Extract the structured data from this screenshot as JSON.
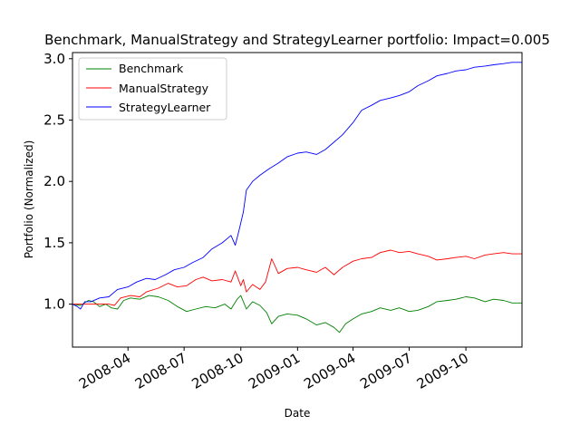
{
  "chart_data": {
    "type": "line",
    "title": "Benchmark, ManualStrategy and StrategyLearner portfolio: Impact=0.005",
    "xlabel": "Date",
    "ylabel": "Portfolio (Normalized)",
    "xlim": [
      "2008-01-02",
      "2009-12-31"
    ],
    "ylim": [
      0.65,
      3.05
    ],
    "yticks": [
      1.0,
      1.5,
      2.0,
      2.5,
      3.0
    ],
    "ytick_labels": [
      "1.0",
      "1.5",
      "2.0",
      "2.5",
      "3.0"
    ],
    "xticks": [
      "2008-04-01",
      "2008-07-01",
      "2008-10-01",
      "2009-01-01",
      "2009-04-01",
      "2009-07-01",
      "2009-10-01"
    ],
    "xtick_labels": [
      "2008-04",
      "2008-07",
      "2008-10",
      "2009-01",
      "2009-04",
      "2009-07",
      "2009-10"
    ],
    "grid": false,
    "legend_position": "top-left",
    "series": [
      {
        "name": "Benchmark",
        "color": "#008000",
        "points": [
          [
            "2008-01-02",
            1.0
          ],
          [
            "2008-01-15",
            0.99
          ],
          [
            "2008-01-28",
            1.03
          ],
          [
            "2008-02-05",
            1.02
          ],
          [
            "2008-02-15",
            0.98
          ],
          [
            "2008-02-25",
            1.0
          ],
          [
            "2008-03-05",
            0.97
          ],
          [
            "2008-03-15",
            0.96
          ],
          [
            "2008-03-25",
            1.03
          ],
          [
            "2008-04-05",
            1.05
          ],
          [
            "2008-04-20",
            1.04
          ],
          [
            "2008-05-05",
            1.07
          ],
          [
            "2008-05-20",
            1.06
          ],
          [
            "2008-06-05",
            1.03
          ],
          [
            "2008-06-20",
            0.98
          ],
          [
            "2008-07-05",
            0.94
          ],
          [
            "2008-07-20",
            0.96
          ],
          [
            "2008-08-05",
            0.98
          ],
          [
            "2008-08-20",
            0.97
          ],
          [
            "2008-09-05",
            1.0
          ],
          [
            "2008-09-15",
            0.96
          ],
          [
            "2008-09-25",
            1.04
          ],
          [
            "2008-10-01",
            1.07
          ],
          [
            "2008-10-10",
            0.96
          ],
          [
            "2008-10-20",
            1.02
          ],
          [
            "2008-11-01",
            0.99
          ],
          [
            "2008-11-12",
            0.93
          ],
          [
            "2008-11-20",
            0.84
          ],
          [
            "2008-12-01",
            0.9
          ],
          [
            "2008-12-15",
            0.92
          ],
          [
            "2009-01-01",
            0.91
          ],
          [
            "2009-01-15",
            0.88
          ],
          [
            "2009-02-01",
            0.83
          ],
          [
            "2009-02-15",
            0.85
          ],
          [
            "2009-03-01",
            0.81
          ],
          [
            "2009-03-10",
            0.77
          ],
          [
            "2009-03-20",
            0.84
          ],
          [
            "2009-04-01",
            0.88
          ],
          [
            "2009-04-15",
            0.92
          ],
          [
            "2009-05-01",
            0.94
          ],
          [
            "2009-05-15",
            0.97
          ],
          [
            "2009-06-01",
            0.95
          ],
          [
            "2009-06-15",
            0.97
          ],
          [
            "2009-07-01",
            0.94
          ],
          [
            "2009-07-15",
            0.95
          ],
          [
            "2009-08-01",
            0.98
          ],
          [
            "2009-08-15",
            1.02
          ],
          [
            "2009-09-01",
            1.03
          ],
          [
            "2009-09-15",
            1.04
          ],
          [
            "2009-10-01",
            1.06
          ],
          [
            "2009-10-15",
            1.05
          ],
          [
            "2009-11-01",
            1.02
          ],
          [
            "2009-11-15",
            1.04
          ],
          [
            "2009-12-01",
            1.03
          ],
          [
            "2009-12-15",
            1.01
          ],
          [
            "2009-12-31",
            1.01
          ]
        ]
      },
      {
        "name": "ManualStrategy",
        "color": "#ff0000",
        "points": [
          [
            "2008-01-02",
            1.0
          ],
          [
            "2008-02-01",
            1.0
          ],
          [
            "2008-03-01",
            1.0
          ],
          [
            "2008-03-10",
            0.99
          ],
          [
            "2008-03-20",
            1.05
          ],
          [
            "2008-04-05",
            1.07
          ],
          [
            "2008-04-20",
            1.06
          ],
          [
            "2008-05-01",
            1.1
          ],
          [
            "2008-05-20",
            1.13
          ],
          [
            "2008-06-05",
            1.17
          ],
          [
            "2008-06-20",
            1.14
          ],
          [
            "2008-07-05",
            1.15
          ],
          [
            "2008-07-20",
            1.2
          ],
          [
            "2008-08-01",
            1.22
          ],
          [
            "2008-08-15",
            1.19
          ],
          [
            "2008-09-01",
            1.2
          ],
          [
            "2008-09-15",
            1.18
          ],
          [
            "2008-09-22",
            1.27
          ],
          [
            "2008-10-01",
            1.15
          ],
          [
            "2008-10-05",
            1.2
          ],
          [
            "2008-10-10",
            1.1
          ],
          [
            "2008-10-20",
            1.16
          ],
          [
            "2008-11-01",
            1.12
          ],
          [
            "2008-11-10",
            1.18
          ],
          [
            "2008-11-20",
            1.37
          ],
          [
            "2008-12-01",
            1.25
          ],
          [
            "2008-12-15",
            1.29
          ],
          [
            "2009-01-01",
            1.3
          ],
          [
            "2009-01-15",
            1.28
          ],
          [
            "2009-02-01",
            1.26
          ],
          [
            "2009-02-15",
            1.3
          ],
          [
            "2009-03-01",
            1.24
          ],
          [
            "2009-03-15",
            1.3
          ],
          [
            "2009-04-01",
            1.35
          ],
          [
            "2009-04-15",
            1.37
          ],
          [
            "2009-05-01",
            1.38
          ],
          [
            "2009-05-15",
            1.42
          ],
          [
            "2009-06-01",
            1.44
          ],
          [
            "2009-06-15",
            1.42
          ],
          [
            "2009-07-01",
            1.43
          ],
          [
            "2009-07-15",
            1.41
          ],
          [
            "2009-08-01",
            1.39
          ],
          [
            "2009-08-15",
            1.36
          ],
          [
            "2009-09-01",
            1.37
          ],
          [
            "2009-09-15",
            1.38
          ],
          [
            "2009-10-01",
            1.39
          ],
          [
            "2009-10-15",
            1.37
          ],
          [
            "2009-11-01",
            1.4
          ],
          [
            "2009-11-15",
            1.41
          ],
          [
            "2009-12-01",
            1.42
          ],
          [
            "2009-12-15",
            1.41
          ],
          [
            "2009-12-31",
            1.41
          ]
        ]
      },
      {
        "name": "StrategyLearner",
        "color": "#0000ff",
        "points": [
          [
            "2008-01-02",
            1.0
          ],
          [
            "2008-01-10",
            0.98
          ],
          [
            "2008-01-15",
            0.96
          ],
          [
            "2008-01-22",
            1.02
          ],
          [
            "2008-02-01",
            1.02
          ],
          [
            "2008-02-15",
            1.05
          ],
          [
            "2008-03-01",
            1.06
          ],
          [
            "2008-03-15",
            1.12
          ],
          [
            "2008-04-01",
            1.14
          ],
          [
            "2008-04-15",
            1.18
          ],
          [
            "2008-05-01",
            1.21
          ],
          [
            "2008-05-15",
            1.2
          ],
          [
            "2008-06-01",
            1.24
          ],
          [
            "2008-06-15",
            1.28
          ],
          [
            "2008-07-01",
            1.3
          ],
          [
            "2008-07-15",
            1.34
          ],
          [
            "2008-08-01",
            1.38
          ],
          [
            "2008-08-15",
            1.45
          ],
          [
            "2008-09-01",
            1.5
          ],
          [
            "2008-09-15",
            1.56
          ],
          [
            "2008-09-22",
            1.48
          ],
          [
            "2008-09-28",
            1.6
          ],
          [
            "2008-10-05",
            1.75
          ],
          [
            "2008-10-10",
            1.93
          ],
          [
            "2008-10-20",
            2.0
          ],
          [
            "2008-11-01",
            2.05
          ],
          [
            "2008-11-15",
            2.1
          ],
          [
            "2008-12-01",
            2.15
          ],
          [
            "2008-12-15",
            2.2
          ],
          [
            "2009-01-01",
            2.23
          ],
          [
            "2009-01-15",
            2.24
          ],
          [
            "2009-02-01",
            2.22
          ],
          [
            "2009-02-15",
            2.26
          ],
          [
            "2009-03-01",
            2.32
          ],
          [
            "2009-03-15",
            2.38
          ],
          [
            "2009-04-01",
            2.48
          ],
          [
            "2009-04-15",
            2.58
          ],
          [
            "2009-05-01",
            2.62
          ],
          [
            "2009-05-15",
            2.66
          ],
          [
            "2009-06-01",
            2.68
          ],
          [
            "2009-06-15",
            2.7
          ],
          [
            "2009-07-01",
            2.73
          ],
          [
            "2009-07-15",
            2.78
          ],
          [
            "2009-08-01",
            2.82
          ],
          [
            "2009-08-15",
            2.86
          ],
          [
            "2009-09-01",
            2.88
          ],
          [
            "2009-09-15",
            2.9
          ],
          [
            "2009-10-01",
            2.91
          ],
          [
            "2009-10-15",
            2.93
          ],
          [
            "2009-11-01",
            2.94
          ],
          [
            "2009-11-15",
            2.95
          ],
          [
            "2009-12-01",
            2.96
          ],
          [
            "2009-12-15",
            2.97
          ],
          [
            "2009-12-31",
            2.97
          ]
        ]
      }
    ]
  }
}
